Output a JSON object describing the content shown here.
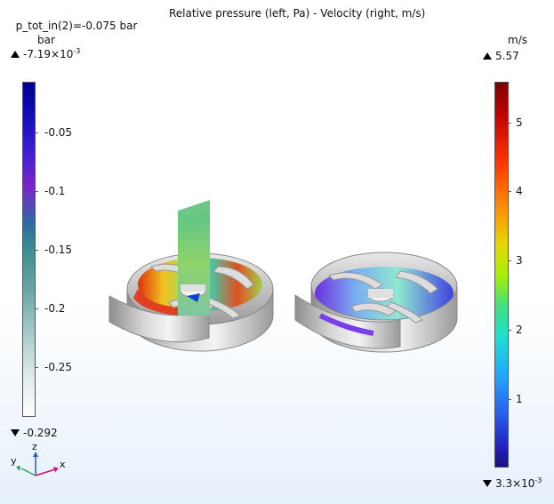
{
  "title": {
    "left": "p_tot_in(2)=-0.075 bar",
    "right": "Relative pressure (left, Pa) - Velocity (right, m/s)"
  },
  "left_legend": {
    "unit": "bar",
    "max_mantissa": "-7.19×10",
    "max_exp": "-3",
    "min": "-0.292",
    "ticks": [
      "-0.05",
      "-0.1",
      "-0.15",
      "-0.2",
      "-0.25"
    ]
  },
  "right_legend": {
    "unit": "m/s",
    "max": "5.57",
    "min_mantissa": "3.3×10",
    "min_exp": "-3",
    "ticks": [
      "5",
      "4",
      "3",
      "2",
      "1"
    ]
  },
  "axes": {
    "x": "x",
    "y": "y",
    "z": "z"
  },
  "colors": {
    "axis_x": "#d0107a",
    "axis_y": "#30a050",
    "axis_z": "#2060c0"
  }
}
